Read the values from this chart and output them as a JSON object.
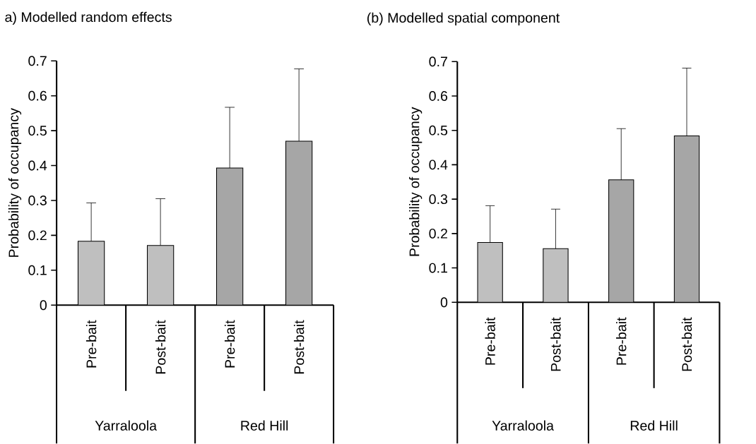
{
  "chart_data": [
    {
      "type": "bar",
      "title": "a) Modelled random effects",
      "ylabel": "Probability of occupancy",
      "categories": [
        "Pre-bait",
        "Post-bait",
        "Pre-bait",
        "Post-bait"
      ],
      "values": [
        0.183,
        0.171,
        0.393,
        0.47
      ],
      "colors": [
        "#bfbfbf",
        "#bfbfbf",
        "#a6a6a6",
        "#a6a6a6"
      ],
      "errors": [
        [
          0.183,
          0.293
        ],
        [
          0.171,
          0.305
        ],
        [
          0.393,
          0.567
        ],
        [
          0.47,
          0.677
        ]
      ],
      "ylim": [
        0,
        0.7
      ],
      "yticks": [
        0,
        0.1,
        0.2,
        0.3,
        0.4,
        0.5,
        0.6,
        0.7
      ],
      "annotations": [
        "Yarraloola",
        "Red Hill"
      ]
    },
    {
      "type": "bar",
      "title": "(b) Modelled spatial component",
      "ylabel": "Probability of occupancy",
      "categories": [
        "Pre-bait",
        "Post-bait",
        "Pre-bait",
        "Post-bait"
      ],
      "values": [
        0.174,
        0.156,
        0.356,
        0.484
      ],
      "colors": [
        "#bfbfbf",
        "#bfbfbf",
        "#a6a6a6",
        "#a6a6a6"
      ],
      "errors": [
        [
          0.174,
          0.281
        ],
        [
          0.156,
          0.271
        ],
        [
          0.356,
          0.505
        ],
        [
          0.484,
          0.681
        ]
      ],
      "ylim": [
        0,
        0.7
      ],
      "yticks": [
        0,
        0.1,
        0.2,
        0.3,
        0.4,
        0.5,
        0.6,
        0.7
      ],
      "annotations": [
        "Yarraloola",
        "Red Hill"
      ]
    }
  ]
}
